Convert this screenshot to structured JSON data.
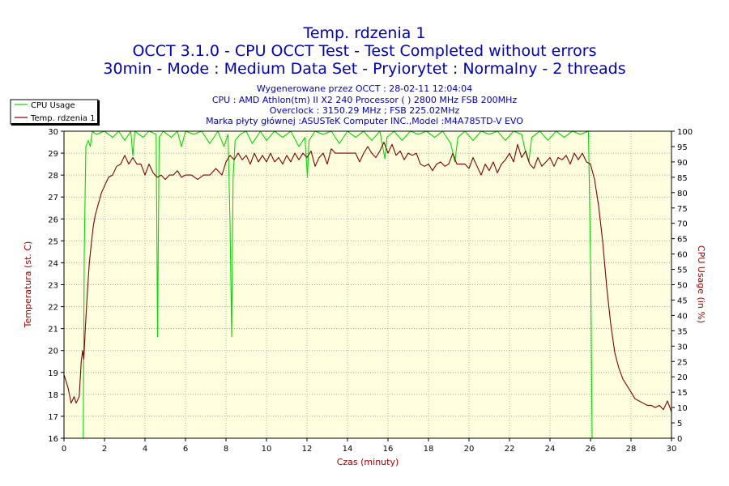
{
  "chart_data": {
    "type": "line",
    "title_lines": [
      "Temp. rdzenia 1",
      "OCCT 3.1.0 - CPU OCCT Test - Test Completed without errors",
      "30min - Mode : Medium Data Set - Pryiorytet : Normalny - 2 threads"
    ],
    "info_lines": [
      "Wygenerowane przez OCCT : 28-02-11 12:04:04",
      "CPU : AMD Athlon(tm) II X2 240 Processor (  ) 2800 MHz FSB 200MHz",
      "Overclock : 3150.29 MHz ; FSB 225.02MHz",
      "Marka płyty głównej :ASUSTeK Computer INC.,Model :M4A785TD-V EVO"
    ],
    "xlabel": "Czas (minuty)",
    "ylabel_left": "Temperatura (st. C)",
    "ylabel_right": "CPU Usage (in %)",
    "xlim": [
      0,
      30
    ],
    "ylim_left": [
      16,
      30
    ],
    "ylim_right": [
      0,
      100
    ],
    "x_ticks": [
      "0",
      "2",
      "4",
      "6",
      "8",
      "10",
      "12",
      "14",
      "16",
      "18",
      "20",
      "22",
      "24",
      "26",
      "28",
      "30"
    ],
    "y_ticks_left": [
      "16",
      "17",
      "18",
      "19",
      "20",
      "21",
      "22",
      "23",
      "24",
      "25",
      "26",
      "27",
      "28",
      "29",
      "30"
    ],
    "y_ticks_right": [
      "0",
      "5",
      "10",
      "15",
      "20",
      "25",
      "30",
      "35",
      "40",
      "45",
      "50",
      "55",
      "60",
      "65",
      "70",
      "75",
      "80",
      "85",
      "90",
      "95",
      "100"
    ],
    "legend": {
      "position": "top-left",
      "entries": [
        "CPU Usage",
        "Temp. rdzenia 1"
      ]
    },
    "series": [
      {
        "name": "CPU Usage",
        "axis": "right",
        "color": "#00dd00",
        "points": [
          [
            0.95,
            0
          ],
          [
            1.0,
            60
          ],
          [
            1.08,
            95
          ],
          [
            1.2,
            97
          ],
          [
            1.3,
            95
          ],
          [
            1.4,
            100
          ],
          [
            1.6,
            99
          ],
          [
            2.0,
            100
          ],
          [
            2.4,
            98
          ],
          [
            2.7,
            100
          ],
          [
            3.0,
            97
          ],
          [
            3.3,
            100
          ],
          [
            3.4,
            92
          ],
          [
            3.5,
            100
          ],
          [
            3.9,
            98
          ],
          [
            4.2,
            100
          ],
          [
            4.55,
            99
          ],
          [
            4.62,
            33
          ],
          [
            4.7,
            98
          ],
          [
            4.9,
            100
          ],
          [
            5.3,
            98
          ],
          [
            5.6,
            100
          ],
          [
            5.8,
            95
          ],
          [
            6.0,
            100
          ],
          [
            6.4,
            99
          ],
          [
            6.8,
            100
          ],
          [
            7.2,
            96
          ],
          [
            7.6,
            100
          ],
          [
            7.9,
            95
          ],
          [
            8.1,
            99
          ],
          [
            8.2,
            70
          ],
          [
            8.28,
            33
          ],
          [
            8.35,
            85
          ],
          [
            8.45,
            97
          ],
          [
            8.7,
            99
          ],
          [
            9.0,
            100
          ],
          [
            9.3,
            96
          ],
          [
            9.7,
            100
          ],
          [
            10.0,
            97
          ],
          [
            10.4,
            100
          ],
          [
            10.8,
            98
          ],
          [
            11.2,
            100
          ],
          [
            11.6,
            95
          ],
          [
            11.9,
            98
          ],
          [
            12.02,
            85
          ],
          [
            12.1,
            97
          ],
          [
            12.4,
            100
          ],
          [
            12.8,
            99
          ],
          [
            13.2,
            100
          ],
          [
            13.6,
            96
          ],
          [
            14.0,
            100
          ],
          [
            14.4,
            98
          ],
          [
            14.8,
            100
          ],
          [
            15.2,
            97
          ],
          [
            15.6,
            100
          ],
          [
            15.85,
            91
          ],
          [
            15.95,
            98
          ],
          [
            16.3,
            100
          ],
          [
            16.7,
            97
          ],
          [
            17.1,
            100
          ],
          [
            17.5,
            99
          ],
          [
            17.9,
            100
          ],
          [
            18.3,
            98
          ],
          [
            18.7,
            100
          ],
          [
            19.1,
            96
          ],
          [
            19.3,
            90
          ],
          [
            19.45,
            98
          ],
          [
            19.8,
            100
          ],
          [
            20.2,
            97
          ],
          [
            20.6,
            100
          ],
          [
            21.0,
            99
          ],
          [
            21.4,
            100
          ],
          [
            21.8,
            97
          ],
          [
            22.2,
            100
          ],
          [
            22.6,
            99
          ],
          [
            22.8,
            93
          ],
          [
            22.95,
            90
          ],
          [
            23.1,
            98
          ],
          [
            23.5,
            100
          ],
          [
            23.9,
            97
          ],
          [
            24.3,
            100
          ],
          [
            24.7,
            98
          ],
          [
            25.1,
            100
          ],
          [
            25.5,
            99
          ],
          [
            25.9,
            100
          ],
          [
            26.02,
            50
          ],
          [
            26.08,
            0
          ]
        ]
      },
      {
        "name": "Temp. rdzenia 1",
        "axis": "left",
        "color": "#800000",
        "points": [
          [
            0.0,
            18.9
          ],
          [
            0.2,
            18.3
          ],
          [
            0.35,
            17.6
          ],
          [
            0.5,
            17.9
          ],
          [
            0.6,
            17.6
          ],
          [
            0.75,
            17.9
          ],
          [
            0.85,
            19.5
          ],
          [
            0.92,
            20.0
          ],
          [
            0.98,
            19.6
          ],
          [
            1.05,
            21.0
          ],
          [
            1.15,
            22.6
          ],
          [
            1.25,
            24.0
          ],
          [
            1.35,
            24.9
          ],
          [
            1.45,
            25.7
          ],
          [
            1.55,
            26.2
          ],
          [
            1.7,
            26.7
          ],
          [
            1.85,
            27.2
          ],
          [
            2.0,
            27.5
          ],
          [
            2.2,
            27.9
          ],
          [
            2.4,
            28.0
          ],
          [
            2.6,
            28.4
          ],
          [
            2.8,
            28.5
          ],
          [
            3.0,
            28.9
          ],
          [
            3.2,
            28.5
          ],
          [
            3.4,
            28.8
          ],
          [
            3.6,
            28.5
          ],
          [
            3.8,
            28.5
          ],
          [
            4.0,
            28.0
          ],
          [
            4.2,
            28.5
          ],
          [
            4.4,
            28.1
          ],
          [
            4.6,
            27.9
          ],
          [
            4.8,
            28.0
          ],
          [
            5.0,
            27.8
          ],
          [
            5.2,
            28.0
          ],
          [
            5.4,
            28.0
          ],
          [
            5.6,
            28.2
          ],
          [
            5.8,
            27.9
          ],
          [
            6.0,
            28.0
          ],
          [
            6.3,
            28.0
          ],
          [
            6.6,
            27.8
          ],
          [
            6.9,
            28.0
          ],
          [
            7.2,
            28.0
          ],
          [
            7.5,
            28.3
          ],
          [
            7.8,
            28.0
          ],
          [
            8.0,
            28.6
          ],
          [
            8.2,
            28.9
          ],
          [
            8.4,
            28.7
          ],
          [
            8.6,
            29.0
          ],
          [
            8.8,
            28.7
          ],
          [
            9.0,
            28.9
          ],
          [
            9.2,
            28.5
          ],
          [
            9.4,
            29.0
          ],
          [
            9.6,
            28.6
          ],
          [
            9.8,
            28.9
          ],
          [
            10.0,
            28.6
          ],
          [
            10.2,
            29.0
          ],
          [
            10.4,
            28.6
          ],
          [
            10.6,
            28.8
          ],
          [
            10.8,
            28.5
          ],
          [
            11.0,
            28.9
          ],
          [
            11.2,
            28.6
          ],
          [
            11.4,
            29.0
          ],
          [
            11.6,
            28.7
          ],
          [
            11.8,
            29.0
          ],
          [
            12.0,
            28.8
          ],
          [
            12.2,
            29.1
          ],
          [
            12.4,
            28.4
          ],
          [
            12.6,
            28.8
          ],
          [
            12.8,
            29.0
          ],
          [
            13.0,
            28.5
          ],
          [
            13.2,
            29.2
          ],
          [
            13.4,
            29.0
          ],
          [
            13.6,
            29.0
          ],
          [
            13.8,
            29.0
          ],
          [
            14.0,
            29.0
          ],
          [
            14.2,
            29.0
          ],
          [
            14.4,
            29.0
          ],
          [
            14.6,
            28.6
          ],
          [
            14.8,
            29.0
          ],
          [
            15.0,
            29.3
          ],
          [
            15.2,
            29.0
          ],
          [
            15.4,
            28.8
          ],
          [
            15.6,
            29.1
          ],
          [
            15.8,
            29.5
          ],
          [
            16.0,
            29.0
          ],
          [
            16.2,
            29.4
          ],
          [
            16.4,
            28.9
          ],
          [
            16.6,
            29.1
          ],
          [
            16.8,
            28.7
          ],
          [
            17.0,
            29.0
          ],
          [
            17.2,
            28.9
          ],
          [
            17.4,
            29.0
          ],
          [
            17.6,
            28.5
          ],
          [
            17.8,
            28.4
          ],
          [
            18.0,
            28.5
          ],
          [
            18.2,
            28.2
          ],
          [
            18.4,
            28.5
          ],
          [
            18.6,
            28.6
          ],
          [
            18.8,
            28.4
          ],
          [
            19.0,
            28.5
          ],
          [
            19.2,
            29.0
          ],
          [
            19.4,
            28.5
          ],
          [
            19.6,
            28.5
          ],
          [
            19.8,
            28.5
          ],
          [
            20.0,
            28.3
          ],
          [
            20.2,
            28.8
          ],
          [
            20.4,
            28.4
          ],
          [
            20.6,
            28.0
          ],
          [
            20.8,
            28.5
          ],
          [
            21.0,
            28.2
          ],
          [
            21.2,
            28.6
          ],
          [
            21.4,
            28.1
          ],
          [
            21.6,
            28.5
          ],
          [
            21.8,
            28.7
          ],
          [
            22.0,
            29.0
          ],
          [
            22.2,
            28.6
          ],
          [
            22.4,
            29.4
          ],
          [
            22.6,
            28.8
          ],
          [
            22.8,
            29.1
          ],
          [
            23.0,
            28.5
          ],
          [
            23.2,
            28.3
          ],
          [
            23.4,
            28.8
          ],
          [
            23.6,
            28.4
          ],
          [
            23.8,
            28.6
          ],
          [
            24.0,
            28.8
          ],
          [
            24.2,
            28.4
          ],
          [
            24.4,
            28.8
          ],
          [
            24.6,
            28.7
          ],
          [
            24.8,
            28.9
          ],
          [
            25.0,
            28.5
          ],
          [
            25.2,
            29.0
          ],
          [
            25.4,
            28.7
          ],
          [
            25.6,
            29.0
          ],
          [
            25.8,
            28.6
          ],
          [
            26.0,
            28.5
          ],
          [
            26.2,
            27.8
          ],
          [
            26.4,
            26.6
          ],
          [
            26.6,
            25.0
          ],
          [
            26.8,
            22.9
          ],
          [
            27.0,
            21.2
          ],
          [
            27.2,
            19.9
          ],
          [
            27.4,
            19.2
          ],
          [
            27.6,
            18.7
          ],
          [
            27.8,
            18.4
          ],
          [
            28.0,
            18.1
          ],
          [
            28.2,
            17.8
          ],
          [
            28.4,
            17.7
          ],
          [
            28.6,
            17.6
          ],
          [
            28.8,
            17.5
          ],
          [
            29.0,
            17.5
          ],
          [
            29.2,
            17.4
          ],
          [
            29.4,
            17.5
          ],
          [
            29.6,
            17.3
          ],
          [
            29.8,
            17.7
          ],
          [
            30.0,
            17.2
          ]
        ]
      }
    ]
  }
}
